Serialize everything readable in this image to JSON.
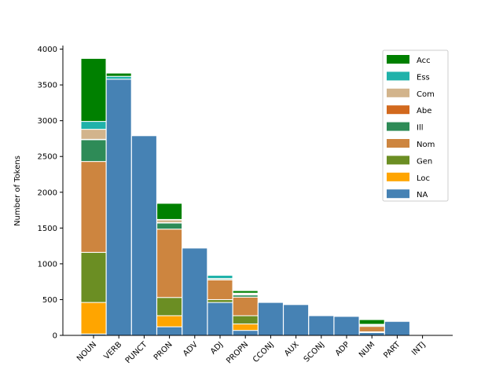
{
  "chart_data": {
    "type": "bar",
    "stacked": true,
    "title": "",
    "xlabel": "",
    "ylabel": "Number of Tokens",
    "ylim": [
      0,
      4050
    ],
    "yticks": [
      0,
      500,
      1000,
      1500,
      2000,
      2500,
      3000,
      3500,
      4000
    ],
    "categories": [
      "NOUN",
      "VERB",
      "PUNCT",
      "PRON",
      "ADV",
      "ADJ",
      "PROPN",
      "CCONJ",
      "AUX",
      "SCONJ",
      "ADP",
      "NUM",
      "PART",
      "INTJ"
    ],
    "legend_position": "top-right",
    "series": [
      {
        "name": "NA",
        "color": "#4682b4",
        "values": [
          20,
          3580,
          2790,
          120,
          1220,
          460,
          70,
          460,
          430,
          275,
          265,
          40,
          195,
          5
        ]
      },
      {
        "name": "Loc",
        "color": "#ffa500",
        "values": [
          440,
          0,
          0,
          155,
          0,
          0,
          90,
          0,
          0,
          0,
          0,
          0,
          0,
          0
        ]
      },
      {
        "name": "Gen",
        "color": "#6b8e23",
        "values": [
          700,
          0,
          0,
          255,
          0,
          40,
          115,
          0,
          0,
          0,
          0,
          10,
          0,
          0
        ]
      },
      {
        "name": "Nom",
        "color": "#cd853f",
        "values": [
          1270,
          0,
          0,
          955,
          0,
          275,
          260,
          0,
          0,
          0,
          0,
          75,
          0,
          0
        ]
      },
      {
        "name": "Ill",
        "color": "#2e8b57",
        "values": [
          305,
          0,
          0,
          85,
          0,
          15,
          30,
          0,
          0,
          0,
          0,
          15,
          0,
          0
        ]
      },
      {
        "name": "Abe",
        "color": "#d2691e",
        "values": [
          5,
          0,
          0,
          5,
          0,
          0,
          5,
          0,
          0,
          0,
          0,
          5,
          0,
          0
        ]
      },
      {
        "name": "Com",
        "color": "#d2b48c",
        "values": [
          140,
          0,
          0,
          40,
          0,
          5,
          15,
          0,
          0,
          0,
          0,
          5,
          0,
          0
        ]
      },
      {
        "name": "Ess",
        "color": "#20b2aa",
        "values": [
          110,
          40,
          0,
          5,
          0,
          45,
          5,
          0,
          0,
          0,
          0,
          5,
          0,
          0
        ]
      },
      {
        "name": "Acc",
        "color": "#008000",
        "values": [
          880,
          45,
          0,
          225,
          0,
          5,
          35,
          0,
          0,
          0,
          0,
          65,
          0,
          0
        ]
      }
    ],
    "legend_order": [
      "Acc",
      "Ess",
      "Com",
      "Abe",
      "Ill",
      "Nom",
      "Gen",
      "Loc",
      "NA"
    ]
  }
}
